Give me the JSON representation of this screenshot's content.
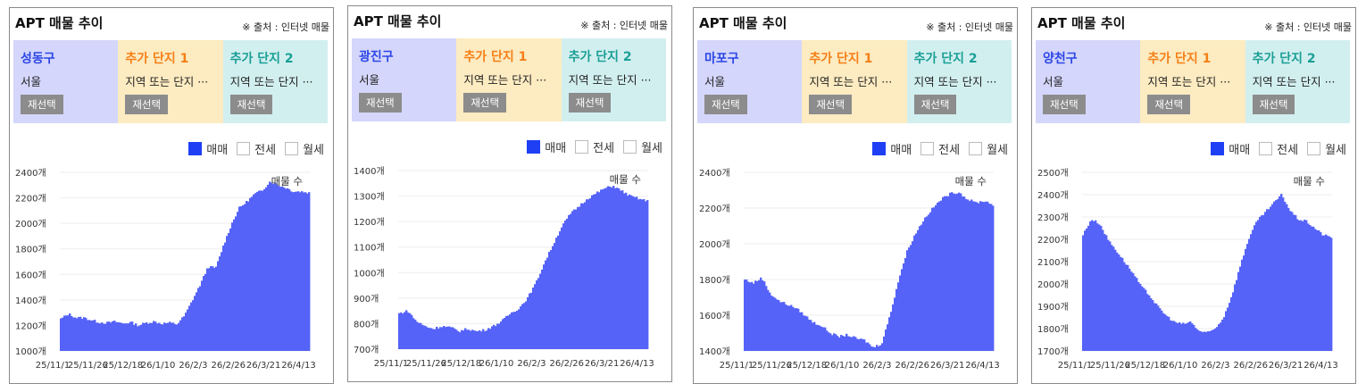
{
  "panels": [
    {
      "title": "APT 매물 추이",
      "source": "※ 출처 : 인터넷 매물",
      "region": "성동구",
      "region_sub": "서울",
      "extra1": "추가 단지 1",
      "extra1_sub": "지역 또는 단지 ···",
      "extra2": "추가 단지 2",
      "extra2_sub": "지역 또는 단지 ···",
      "reselect": "재선택",
      "legend": [
        "매매",
        "전세",
        "월세"
      ],
      "legend_checked": [
        true,
        false,
        false
      ]
    },
    {
      "title": "APT 매물 추이",
      "source": "※ 출처 : 인터넷 매물",
      "region": "광진구",
      "region_sub": "서울",
      "extra1": "추가 단지 1",
      "extra1_sub": "지역 또는 단지 ···",
      "extra2": "추가 단지 2",
      "extra2_sub": "지역 또는 단지 ···",
      "reselect": "재선택",
      "legend": [
        "매매",
        "전세",
        "월세"
      ],
      "legend_checked": [
        true,
        false,
        false
      ]
    },
    {
      "title": "APT 매물 추이",
      "source": "※ 출처 : 인터넷 매물",
      "region": "마포구",
      "region_sub": "서울",
      "extra1": "추가 단지 1",
      "extra1_sub": "지역 또는 단지 ···",
      "extra2": "추가 단지 2",
      "extra2_sub": "지역 또는 단지 ···",
      "reselect": "재선택",
      "legend": [
        "매매",
        "전세",
        "월세"
      ],
      "legend_checked": [
        true,
        false,
        false
      ]
    },
    {
      "title": "APT 매물 추이",
      "source": "※ 출처 : 인터넷 매물",
      "region": "양천구",
      "region_sub": "서울",
      "extra1": "추가 단지 1",
      "extra1_sub": "지역 또는 단지 ···",
      "extra2": "추가 단지 2",
      "extra2_sub": "지역 또는 단지 ···",
      "reselect": "재선택",
      "legend": [
        "매매",
        "전세",
        "월세"
      ],
      "legend_checked": [
        true,
        false,
        false
      ]
    }
  ],
  "chart_data": [
    {
      "type": "area",
      "series_name": "매물 수",
      "color": "#5563f8",
      "ylim": [
        1000,
        2400
      ],
      "yticks": [
        "1000개",
        "1200개",
        "1400개",
        "1600개",
        "1800개",
        "2000개",
        "2200개",
        "2400개"
      ],
      "xticks": [
        "25/11/1",
        "25/11/26",
        "25/12/18",
        "26/1/10",
        "26/2/3",
        "26/2/26",
        "26/3/21",
        "26/4/13"
      ],
      "values": [
        1250,
        1290,
        1260,
        1260,
        1240,
        1225,
        1220,
        1230,
        1215,
        1225,
        1200,
        1220,
        1230,
        1215,
        1220,
        1210,
        1280,
        1400,
        1520,
        1660,
        1650,
        1830,
        1990,
        2120,
        2170,
        2230,
        2260,
        2330,
        2300,
        2280,
        2250,
        2250,
        2240
      ]
    },
    {
      "type": "area",
      "series_name": "매물 수",
      "color": "#5563f8",
      "ylim": [
        700,
        1400
      ],
      "yticks": [
        "700개",
        "800개",
        "900개",
        "1000개",
        "1100개",
        "1200개",
        "1300개",
        "1400개"
      ],
      "xticks": [
        "25/11/1",
        "25/11/26",
        "25/12/18",
        "26/1/10",
        "26/2/3",
        "26/2/26",
        "26/3/21",
        "26/4/13"
      ],
      "values": [
        840,
        850,
        810,
        790,
        780,
        790,
        785,
        770,
        780,
        770,
        775,
        790,
        810,
        840,
        860,
        900,
        960,
        1040,
        1110,
        1180,
        1230,
        1260,
        1290,
        1310,
        1330,
        1340,
        1320,
        1300,
        1290,
        1280
      ]
    },
    {
      "type": "area",
      "series_name": "매물 수",
      "color": "#5563f8",
      "ylim": [
        1400,
        2400
      ],
      "yticks": [
        "1400개",
        "1600개",
        "1800개",
        "2000개",
        "2200개",
        "2400개"
      ],
      "xticks": [
        "25/11/1",
        "25/11/26",
        "25/12/18",
        "26/1/10",
        "26/2/3",
        "26/2/26",
        "26/3/21",
        "26/4/13"
      ],
      "values": [
        1800,
        1780,
        1810,
        1720,
        1680,
        1660,
        1640,
        1600,
        1560,
        1540,
        1500,
        1480,
        1490,
        1470,
        1460,
        1420,
        1440,
        1600,
        1800,
        1960,
        2060,
        2140,
        2200,
        2250,
        2280,
        2290,
        2250,
        2230,
        2240,
        2220
      ]
    },
    {
      "type": "area",
      "series_name": "매물 수",
      "color": "#5563f8",
      "ylim": [
        1700,
        2500
      ],
      "yticks": [
        "1700개",
        "1800개",
        "1900개",
        "2000개",
        "2100개",
        "2200개",
        "2300개",
        "2400개",
        "2500개"
      ],
      "xticks": [
        "25/11/1",
        "25/11/26",
        "25/12/18",
        "26/1/10",
        "26/2/3",
        "26/2/26",
        "26/3/21",
        "26/4/13"
      ],
      "values": [
        2220,
        2290,
        2270,
        2200,
        2150,
        2100,
        2050,
        1990,
        1950,
        1900,
        1860,
        1830,
        1820,
        1830,
        1790,
        1780,
        1800,
        1850,
        1950,
        2080,
        2200,
        2280,
        2320,
        2360,
        2400,
        2330,
        2290,
        2280,
        2250,
        2220,
        2210
      ]
    }
  ]
}
